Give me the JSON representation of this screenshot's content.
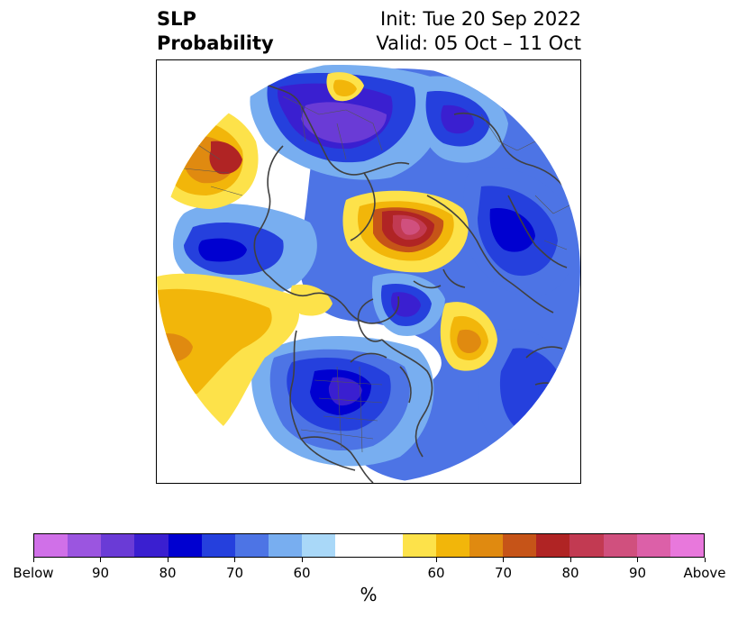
{
  "title": {
    "variable": "SLP",
    "quantity": "Probability",
    "init": "Init: Tue 20 Sep 2022",
    "valid": "Valid: 05 Oct – 11 Oct"
  },
  "map": {
    "projection": "north-polar-stereographic",
    "below_colors": [
      "#d070e8",
      "#9b55e0",
      "#6a3bd6",
      "#3a1fd0",
      "#0000d0",
      "#2540dd",
      "#4d74e5",
      "#78aef0",
      "#a9d8f8"
    ],
    "above_colors": [
      "#fde24a",
      "#f2b60a",
      "#e08a10",
      "#c65418",
      "#b02424",
      "#c23a52",
      "#d0507e",
      "#dc60a8",
      "#e878dc"
    ],
    "neutral_color": "#ffffff",
    "coastline_color": "#404040"
  },
  "colorbar": {
    "colors": [
      "#d070e8",
      "#9b55e0",
      "#6a3bd6",
      "#3a1fd0",
      "#0000d0",
      "#2540dd",
      "#4d74e5",
      "#78aef0",
      "#a9d8f8",
      "#ffffff",
      "#fde24a",
      "#f2b60a",
      "#e08a10",
      "#c65418",
      "#b02424",
      "#c23a52",
      "#d0507e",
      "#dc60a8",
      "#e878dc"
    ],
    "tick_labels": [
      "Below",
      "90",
      "80",
      "70",
      "60",
      "60",
      "70",
      "80",
      "90",
      "Above"
    ],
    "unit": "%"
  }
}
